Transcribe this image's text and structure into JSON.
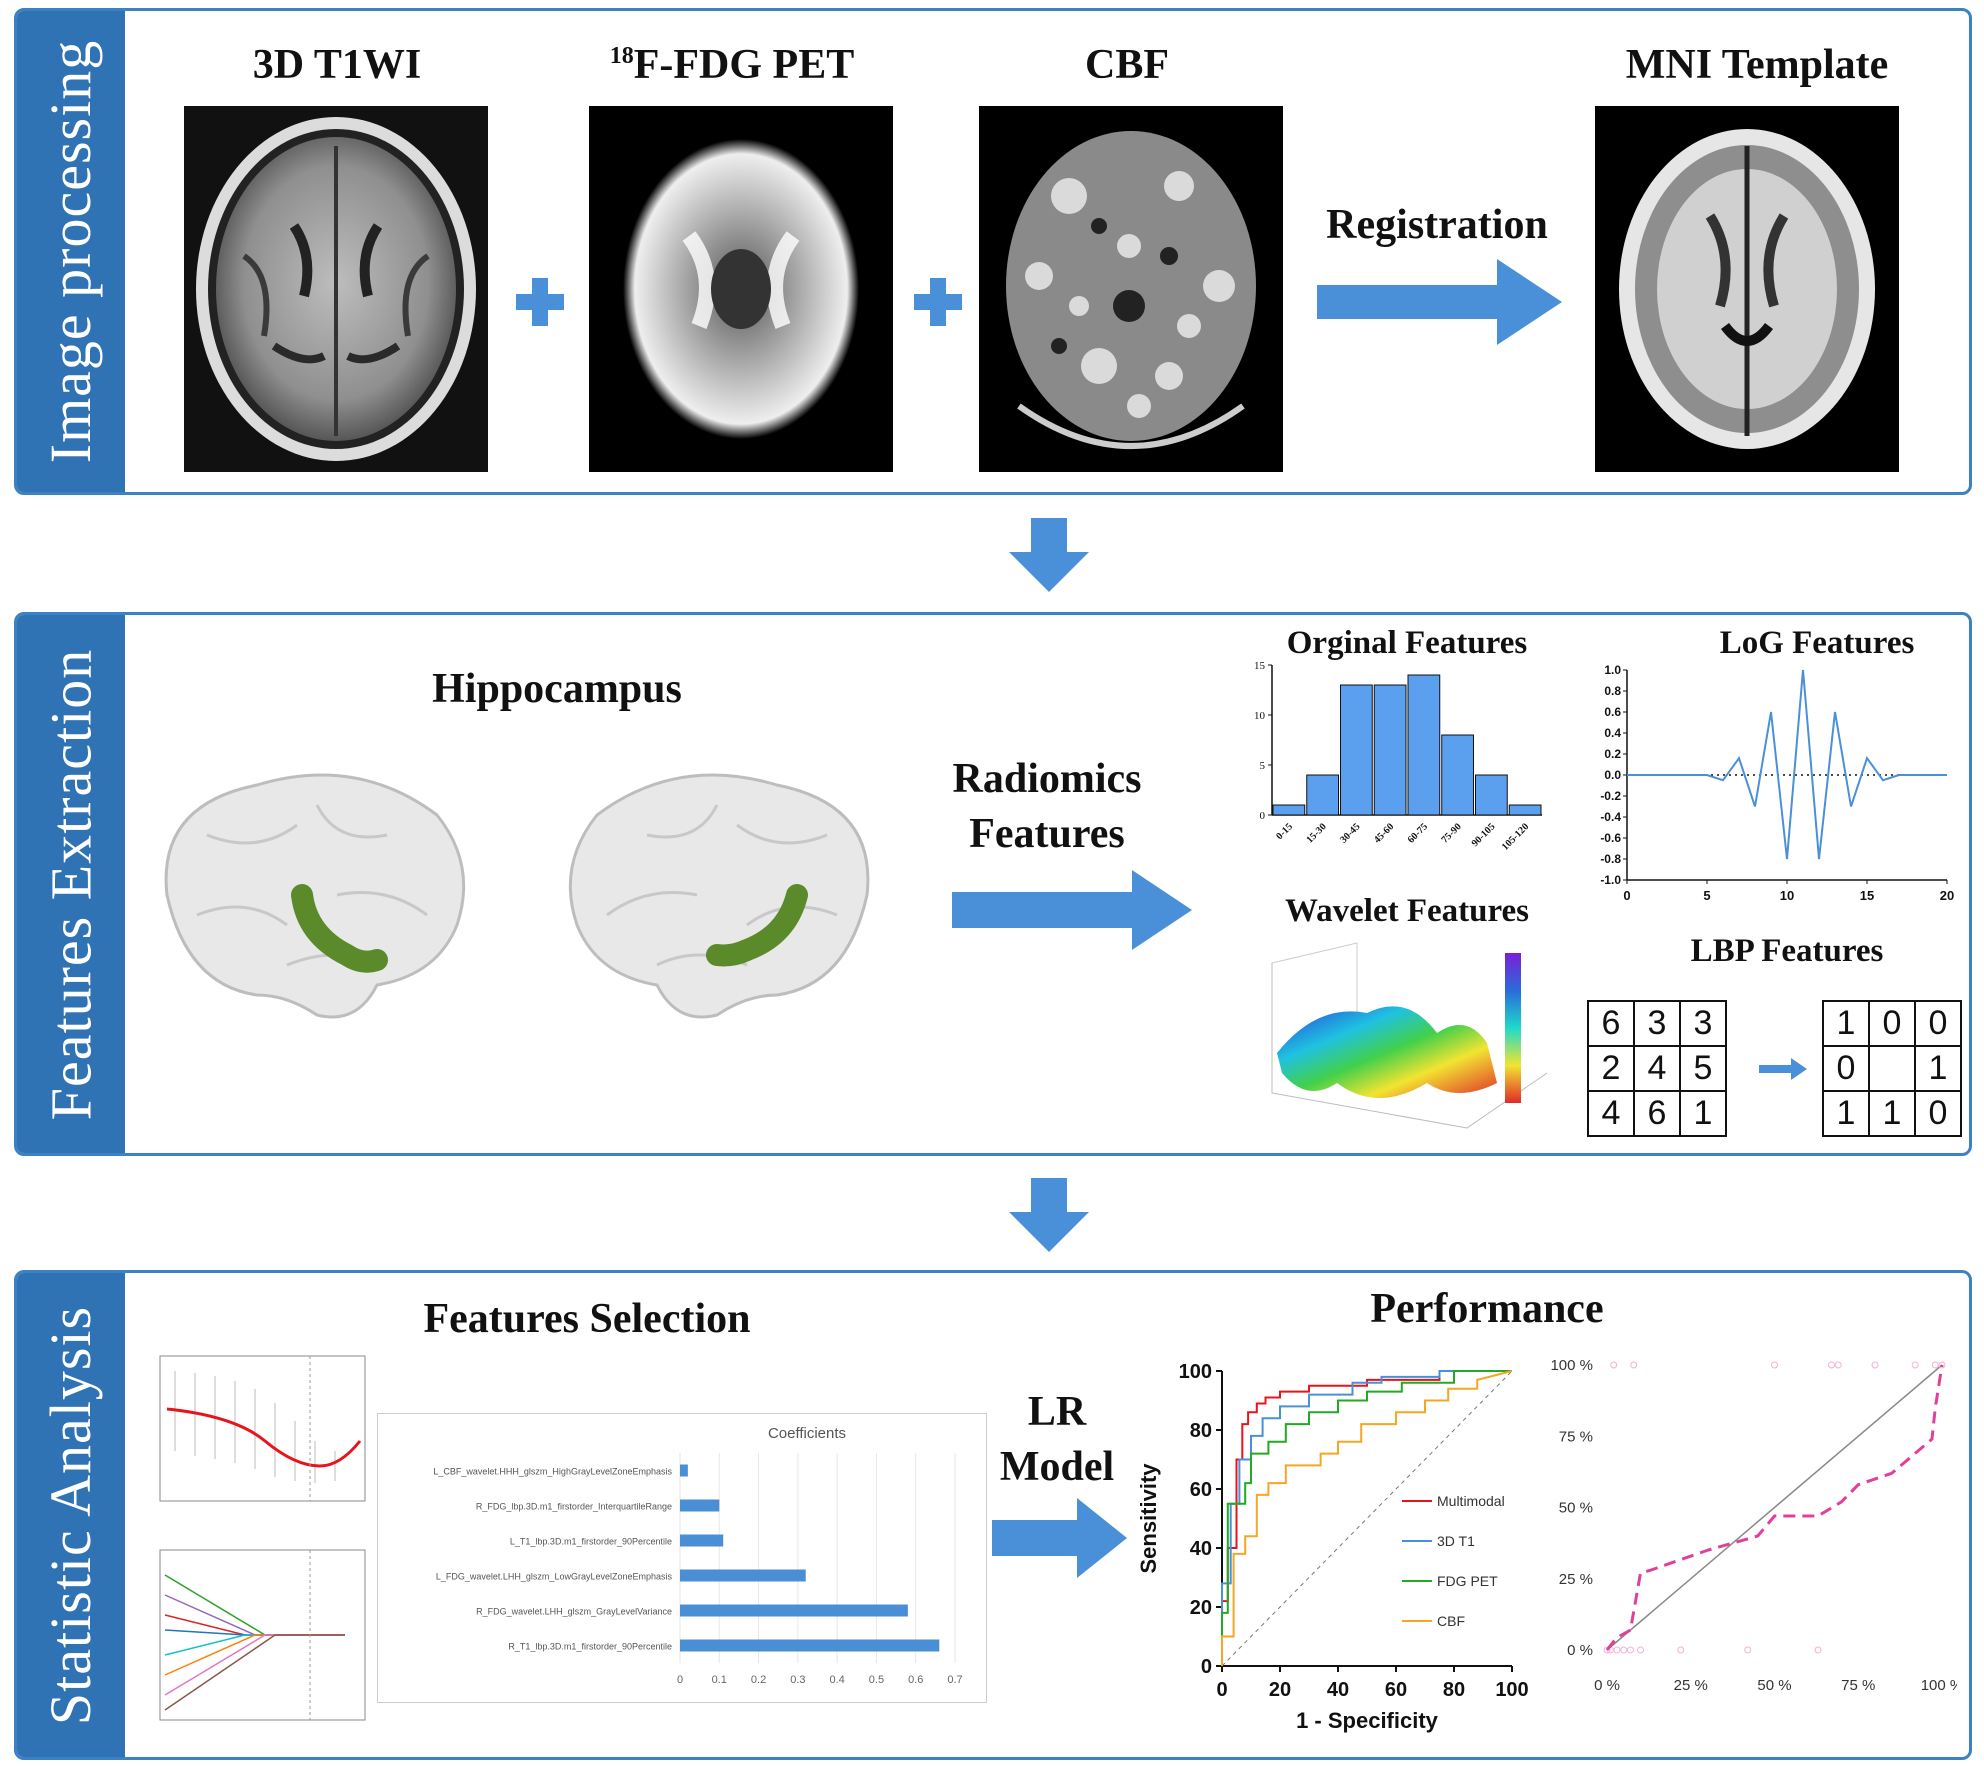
{
  "sections": {
    "image_processing": {
      "label": "Image processing",
      "images": [
        "3D T1WI",
        "18F-FDG PET",
        "CBF",
        "MNI Template"
      ],
      "pet_superscript": "18",
      "pet_rest": "F-FDG PET",
      "registration_label": "Registration"
    },
    "features_extraction": {
      "label": "Features Extraction",
      "hippocampus_label": "Hippocampus",
      "radiomics_line1": "Radiomics",
      "radiomics_line2": "Features",
      "original_title": "Orginal Features",
      "log_title": "LoG Features",
      "wavelet_title": "Wavelet Features",
      "lbp_title": "LBP Features",
      "lbp_input": [
        [
          "6",
          "3",
          "3"
        ],
        [
          "2",
          "4",
          "5"
        ],
        [
          "4",
          "6",
          "1"
        ]
      ],
      "lbp_output": [
        [
          "1",
          "0",
          "0"
        ],
        [
          "0",
          "",
          "1"
        ],
        [
          "1",
          "1",
          "0"
        ]
      ]
    },
    "statistic_analysis": {
      "label": "Statistic Analysis",
      "features_selection_title": "Features Selection",
      "lr_line1": "LR",
      "lr_line2": "Model",
      "performance_title": "Performance"
    }
  },
  "chart_data": [
    {
      "type": "bar",
      "title": "Orginal Features",
      "categories": [
        "0-15",
        "15-30",
        "30-45",
        "45-60",
        "60-75",
        "75-90",
        "90-105",
        "105-120"
      ],
      "values": [
        1,
        4,
        13,
        13,
        14,
        8,
        4,
        1
      ],
      "ylim": [
        0,
        15
      ],
      "yticks": [
        0,
        5,
        10,
        15
      ]
    },
    {
      "type": "line",
      "title": "LoG Features",
      "x": [
        0,
        1,
        2,
        3,
        4,
        5,
        6,
        7,
        8,
        9,
        10,
        11,
        12,
        13,
        14,
        15,
        16,
        17,
        18,
        19,
        20
      ],
      "y": [
        0,
        0,
        0,
        0,
        0,
        0,
        -0.05,
        0.16,
        -0.3,
        0.6,
        -0.8,
        1.0,
        -0.8,
        0.6,
        -0.3,
        0.16,
        -0.05,
        0,
        0,
        0,
        0
      ],
      "xlim": [
        0,
        20
      ],
      "ylim": [
        -1.0,
        1.0
      ],
      "xticks": [
        0,
        5,
        10,
        15,
        20
      ],
      "yticks": [
        "1.0",
        "0.8",
        "0.6",
        "0.4",
        "0.2",
        "0.0",
        "-0.2",
        "-0.4",
        "-0.6",
        "-0.8",
        "-1.0"
      ]
    },
    {
      "type": "bar",
      "title": "Coefficients",
      "orientation": "horizontal",
      "categories": [
        "L_CBF_wavelet.HHH_glszm_HighGrayLevelZoneEmphasis",
        "R_FDG_lbp.3D.m1_firstorder_InterquartileRange",
        "L_T1_lbp.3D.m1_firstorder_90Percentile",
        "L_FDG_wavelet.LHH_glszm_LowGrayLevelZoneEmphasis",
        "R_FDG_wavelet.LHH_glszm_GrayLevelVariance",
        "R_T1_lbp.3D.m1_firstorder_90Percentile"
      ],
      "values": [
        0.02,
        0.1,
        0.11,
        0.32,
        0.58,
        0.66
      ],
      "xlim": [
        0,
        0.7
      ],
      "xticks": [
        "0",
        "0.1",
        "0.2",
        "0.3",
        "0.4",
        "0.5",
        "0.6",
        "0.7"
      ]
    },
    {
      "type": "line",
      "title": "Performance",
      "xlabel": "1 - Specificity",
      "ylabel": "Sensitivity",
      "xlim": [
        0,
        100
      ],
      "ylim": [
        0,
        100
      ],
      "xticks": [
        "0",
        "20",
        "40",
        "60",
        "80",
        "100"
      ],
      "yticks": [
        "0",
        "20",
        "40",
        "60",
        "80",
        "100"
      ],
      "series": [
        {
          "name": "Multimodal",
          "color": "#e8141c",
          "points": [
            [
              0,
              0
            ],
            [
              0,
              22
            ],
            [
              2,
              22
            ],
            [
              2,
              40
            ],
            [
              5,
              40
            ],
            [
              5,
              70
            ],
            [
              7,
              70
            ],
            [
              7,
              82
            ],
            [
              9,
              82
            ],
            [
              9,
              86
            ],
            [
              12,
              86
            ],
            [
              12,
              89
            ],
            [
              15,
              89
            ],
            [
              15,
              91
            ],
            [
              20,
              91
            ],
            [
              20,
              93
            ],
            [
              30,
              93
            ],
            [
              30,
              95
            ],
            [
              50,
              95
            ],
            [
              50,
              97
            ],
            [
              75,
              97
            ],
            [
              75,
              100
            ],
            [
              100,
              100
            ]
          ]
        },
        {
          "name": "3D T1",
          "color": "#4a90d9",
          "points": [
            [
              0,
              0
            ],
            [
              0,
              28
            ],
            [
              3,
              28
            ],
            [
              3,
              55
            ],
            [
              6,
              55
            ],
            [
              6,
              70
            ],
            [
              10,
              70
            ],
            [
              10,
              78
            ],
            [
              14,
              78
            ],
            [
              14,
              84
            ],
            [
              20,
              84
            ],
            [
              20,
              88
            ],
            [
              30,
              88
            ],
            [
              30,
              92
            ],
            [
              45,
              92
            ],
            [
              45,
              96
            ],
            [
              55,
              96
            ],
            [
              55,
              98
            ],
            [
              75,
              98
            ],
            [
              75,
              100
            ],
            [
              100,
              100
            ]
          ]
        },
        {
          "name": "FDG PET",
          "color": "#22aa22",
          "points": [
            [
              0,
              0
            ],
            [
              0,
              18
            ],
            [
              2,
              18
            ],
            [
              2,
              55
            ],
            [
              8,
              55
            ],
            [
              8,
              62
            ],
            [
              10,
              62
            ],
            [
              10,
              72
            ],
            [
              16,
              72
            ],
            [
              16,
              76
            ],
            [
              22,
              76
            ],
            [
              22,
              82
            ],
            [
              30,
              82
            ],
            [
              30,
              86
            ],
            [
              40,
              86
            ],
            [
              40,
              90
            ],
            [
              50,
              90
            ],
            [
              50,
              93
            ],
            [
              62,
              93
            ],
            [
              62,
              96
            ],
            [
              80,
              96
            ],
            [
              80,
              100
            ],
            [
              100,
              100
            ]
          ]
        },
        {
          "name": "CBF",
          "color": "#f5a623",
          "points": [
            [
              0,
              0
            ],
            [
              0,
              10
            ],
            [
              4,
              10
            ],
            [
              4,
              38
            ],
            [
              8,
              38
            ],
            [
              8,
              44
            ],
            [
              12,
              44
            ],
            [
              12,
              58
            ],
            [
              16,
              58
            ],
            [
              16,
              62
            ],
            [
              22,
              62
            ],
            [
              22,
              68
            ],
            [
              34,
              68
            ],
            [
              34,
              72
            ],
            [
              40,
              72
            ],
            [
              40,
              76
            ],
            [
              48,
              76
            ],
            [
              48,
              82
            ],
            [
              60,
              82
            ],
            [
              60,
              86
            ],
            [
              70,
              86
            ],
            [
              70,
              90
            ],
            [
              78,
              90
            ],
            [
              78,
              94
            ],
            [
              88,
              94
            ],
            [
              88,
              97
            ],
            [
              100,
              100
            ]
          ]
        }
      ]
    },
    {
      "type": "line",
      "title": "",
      "xlim": [
        0,
        100
      ],
      "ylim": [
        0,
        100
      ],
      "xticks": [
        "0 %",
        "25 %",
        "50 %",
        "75 %",
        "100 %"
      ],
      "yticks": [
        "0 %",
        "25 %",
        "50 %",
        "75 %",
        "100 %"
      ],
      "series": [
        {
          "name": "",
          "color": "#e0409a",
          "points": [
            [
              0,
              0
            ],
            [
              2,
              3
            ],
            [
              4,
              5
            ],
            [
              7,
              7
            ],
            [
              10,
              27
            ],
            [
              13,
              28
            ],
            [
              30,
              35
            ],
            [
              45,
              40
            ],
            [
              50,
              47
            ],
            [
              55,
              47
            ],
            [
              63,
              47
            ],
            [
              70,
              52
            ],
            [
              75,
              58
            ],
            [
              85,
              62
            ],
            [
              97,
              74
            ],
            [
              98,
              85
            ],
            [
              100,
              100
            ]
          ]
        }
      ],
      "reference_line": true
    }
  ],
  "colors": {
    "accent": "#2f73b5",
    "border": "#3b82c4",
    "arrow": "#4a90d9",
    "hippocampus": "#5a8a2a"
  }
}
